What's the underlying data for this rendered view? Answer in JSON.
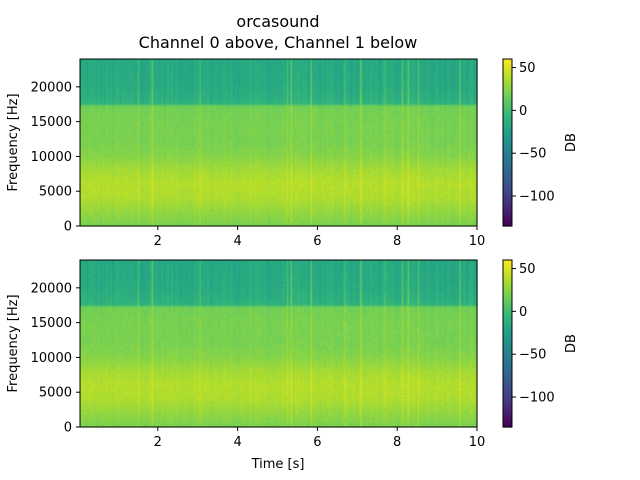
{
  "chart_data": {
    "type": "heatmap",
    "title": "orcasound",
    "subtitle": "Channel 0 above, Channel 1 below",
    "colormap": "viridis",
    "xlabel": "Time [s]",
    "xlim": [
      0.05,
      10
    ],
    "xticks": [
      2,
      4,
      6,
      8,
      10
    ],
    "ylim": [
      0,
      24000
    ],
    "yticks": [
      0,
      5000,
      10000,
      15000,
      20000
    ],
    "colorbar": {
      "label": "DB",
      "range": [
        -135,
        60
      ],
      "ticks": [
        50,
        0,
        -50,
        -100
      ]
    },
    "band_profile": {
      "frequency_hz": [
        0,
        1000,
        2500,
        4000,
        6000,
        8000,
        10000,
        12000,
        15000,
        17200,
        17600,
        20000,
        24000
      ],
      "level_db": [
        20,
        24,
        30,
        36,
        38,
        33,
        24,
        20,
        20,
        18,
        -10,
        -16,
        -18
      ]
    },
    "panels": [
      {
        "name": "Channel 0",
        "ylabel": "Frequency [Hz]",
        "show_xlabel": false
      },
      {
        "name": "Channel 1",
        "ylabel": "Frequency [Hz]",
        "show_xlabel": true
      }
    ]
  }
}
